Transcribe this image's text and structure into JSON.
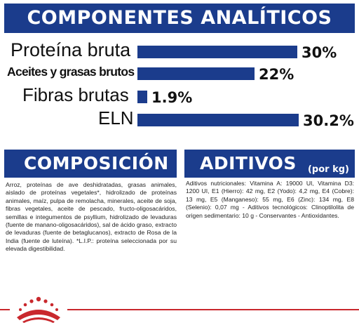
{
  "header": {
    "title": "COMPONENTES ANALÍTICOS"
  },
  "analytics": [
    {
      "label": "Proteína bruta",
      "value_text": "30%",
      "value": 30
    },
    {
      "label": "Aceites y grasas brutos",
      "value_text": "22%",
      "value": 22
    },
    {
      "label": "Fibras brutas",
      "value_text": "1.9%",
      "value": 1.9
    },
    {
      "label": "ELN",
      "value_text": "30.2%",
      "value": 30.2
    }
  ],
  "composition": {
    "title": "COMPOSICIÓN",
    "text": "Arroz, proteínas de ave deshidratadas, grasas animales, aislado de proteínas vegetales*, hidrolizado de proteínas animales, maíz, pulpa de remolacha, minerales, aceite de soja, fibras vegetales, aceite de pescado, fructo-oligosacáridos, semillas e integumentos de psyllium, hidrolizado de levaduras (fuente de manano-oligosacáridos), sal de ácido graso, extracto de levaduras (fuente de betaglucanos), extracto de Rosa de la India (fuente de luteína). *L.I.P.: proteína seleccionada por su elevada digestibilidad."
  },
  "additives": {
    "title": "ADITIVOS",
    "unit": "(por kg)",
    "text": "Aditivos nutricionales: Vitamina A: 19000 UI, Vitamina D3: 1200 UI, E1 (Hierro): 42 mg, E2 (Yodo): 4,2 mg, E4 (Cobre): 13 mg, E5 (Manganeso): 55 mg, E6 (Zinc): 134 mg, E8 (Selenio): 0,07 mg - Aditivos tecnológicos: Clinoptilolita de origen sedimentario: 10 g - Conservantes - Antioxidantes."
  },
  "footer": {
    "logo": "royal-canin-crown-logo",
    "accent_color": "#c9282d"
  },
  "colors": {
    "brand_blue": "#1b3c8c"
  }
}
